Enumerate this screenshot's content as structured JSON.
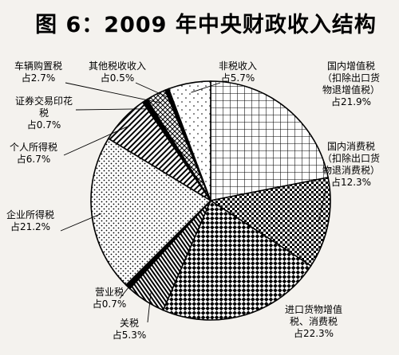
{
  "chart_data": {
    "type": "pie",
    "title": "图 6：2009 年中央财政收入结构",
    "slices": [
      {
        "label_lines": [
          "国内增值税",
          "（扣除出口货",
          "物退增值税）",
          "占21.9%"
        ],
        "value": 21.9,
        "pattern": "grid"
      },
      {
        "label_lines": [
          "国内消费税",
          "（扣除出口货",
          "物退消费税）",
          "占12.3%"
        ],
        "value": 12.3,
        "pattern": "dense-check"
      },
      {
        "label_lines": [
          "进口货物增值",
          "税、消费税",
          "占22.3%"
        ],
        "value": 22.3,
        "pattern": "checker"
      },
      {
        "label_lines": [
          "关税",
          "占5.3%"
        ],
        "value": 5.3,
        "pattern": "vertical"
      },
      {
        "label_lines": [
          "营业税",
          "占0.7%"
        ],
        "value": 0.7,
        "pattern": "solid"
      },
      {
        "label_lines": [
          "企业所得税",
          "占21.2%"
        ],
        "value": 21.2,
        "pattern": "dots"
      },
      {
        "label_lines": [
          "个人所得税",
          "占6.7%"
        ],
        "value": 6.7,
        "pattern": "diagonal"
      },
      {
        "label_lines": [
          "证券交易印花",
          "税",
          "占0.7%"
        ],
        "value": 0.7,
        "pattern": "solid"
      },
      {
        "label_lines": [
          "车辆购置税",
          "占2.7%"
        ],
        "value": 2.7,
        "pattern": "cross-diagonal"
      },
      {
        "label_lines": [
          "其他税收收入",
          "占0.5%"
        ],
        "value": 0.5,
        "pattern": "solid"
      },
      {
        "label_lines": [
          "非税收入",
          "占5.7%"
        ],
        "value": 5.7,
        "pattern": "sparse-dots"
      }
    ]
  }
}
